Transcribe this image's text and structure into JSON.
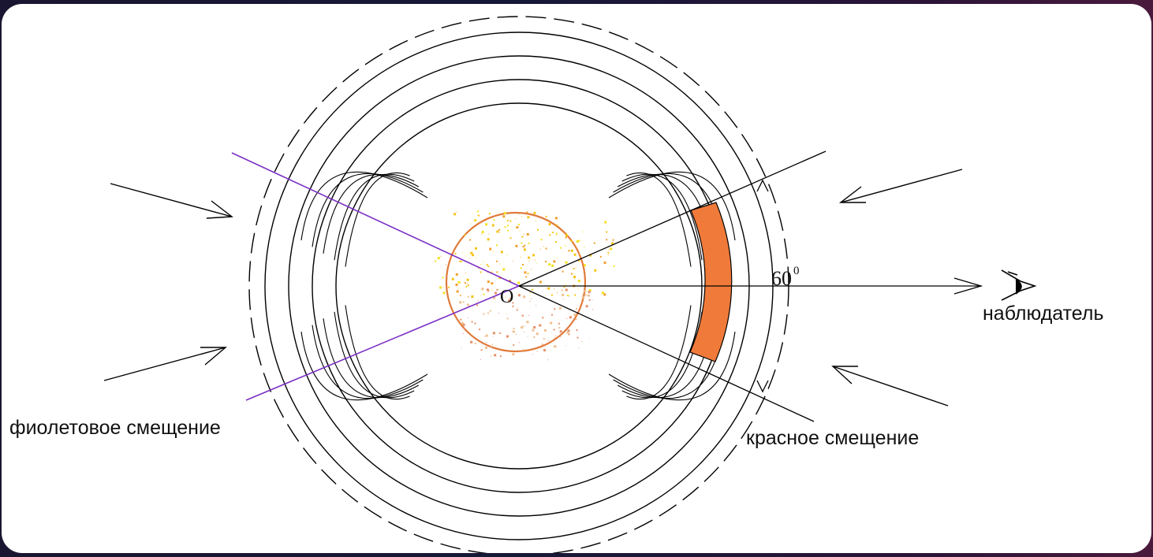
{
  "labels": {
    "violet_shift": "фиолетовое смещение",
    "red_shift": "красное  смещение",
    "observer": "наблюдатель",
    "origin": "O",
    "angle_value": "60",
    "angle_degree": "0"
  },
  "colors": {
    "background": "#ffffff",
    "line": "#000000",
    "violet_line": "#7b2fc4",
    "red_band": "#f07a3a",
    "star_outline": "#e07a3a",
    "star_speckle": "#f5e020"
  },
  "angle_deg": 60
}
